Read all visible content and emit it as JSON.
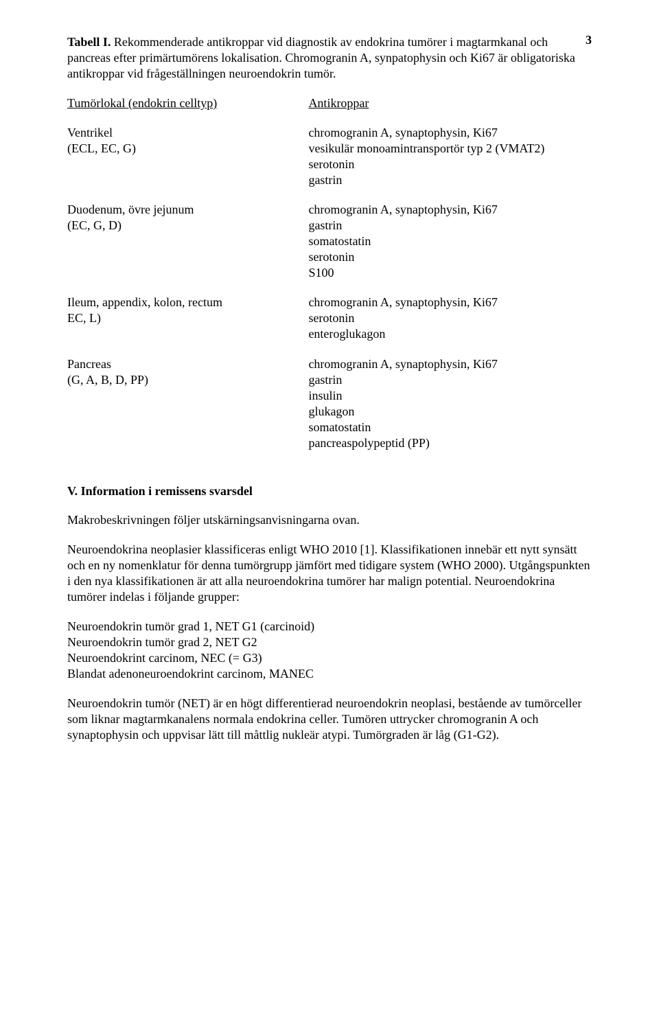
{
  "pageNumber": "3",
  "intro": {
    "tableLabel": "Tabell I.",
    "text1": " Rekommenderade antikroppar vid diagnostik av endokrina tumörer i magtarmkanal och pancreas efter primärtumörens lokalisation. Chromogranin A, synpatophysin och Ki67 är obligatoriska antikroppar vid frågeställningen neuroendokrin tumör."
  },
  "tableHeader": {
    "left": "Tumörlokal (endokrin celltyp)",
    "right": "Antikroppar"
  },
  "rows": [
    {
      "left": [
        "Ventrikel",
        "(ECL, EC, G)"
      ],
      "right": [
        "chromogranin A, synaptophysin, Ki67",
        "vesikulär monoamintransportör typ 2 (VMAT2)",
        "serotonin",
        "gastrin"
      ]
    },
    {
      "left": [
        "Duodenum, övre jejunum",
        "(EC, G, D)"
      ],
      "right": [
        "chromogranin A, synaptophysin, Ki67",
        "gastrin",
        "somatostatin",
        "serotonin",
        "S100"
      ]
    },
    {
      "left": [
        "Ileum, appendix, kolon, rectum",
        "EC, L)"
      ],
      "right": [
        "chromogranin A, synaptophysin, Ki67",
        "serotonin",
        "enteroglukagon"
      ]
    },
    {
      "left": [
        "Pancreas",
        "(G, A, B, D, PP)"
      ],
      "right": [
        "chromogranin A, synaptophysin, Ki67",
        "gastrin",
        "insulin",
        "glukagon",
        "somatostatin",
        "pancreaspolypeptid (PP)"
      ]
    }
  ],
  "sectionV": {
    "heading": "V. Information i remissens svarsdel",
    "p1": "Makrobeskrivningen följer utskärningsanvisningarna ovan.",
    "p2": "Neuroendokrina neoplasier klassificeras enligt WHO 2010 [1]. Klassifikationen innebär ett nytt synsätt och en ny nomenklatur för denna tumörgrupp jämfört med tidigare system (WHO 2000). Utgångspunkten i den nya klassifikationen är att alla neuroendokrina tumörer har malign potential. Neuroendokrina tumörer indelas i följande grupper:",
    "list": [
      "Neuroendokrin tumör grad 1, NET G1 (carcinoid)",
      "Neuroendokrin tumör grad 2, NET G2",
      "Neuroendokrint carcinom, NEC (= G3)",
      "Blandat adenoneuroendokrint carcinom, MANEC"
    ],
    "p3": "Neuroendokrin tumör (NET) är en högt differentierad neuroendokrin neoplasi, bestående av tumörceller som liknar magtarmkanalens normala endokrina celler. Tumören uttrycker chromogranin A och synaptophysin och uppvisar lätt till måttlig nukleär atypi. Tumörgraden är låg (G1-G2)."
  }
}
